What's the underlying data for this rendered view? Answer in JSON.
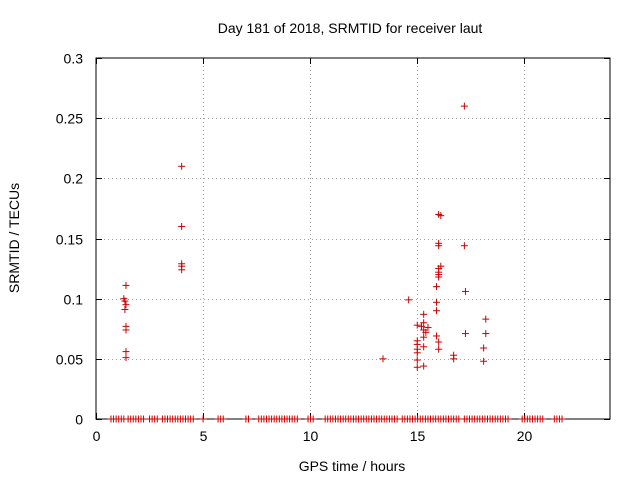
{
  "chart_data": {
    "type": "scatter",
    "title": "Day 181 of 2018, SRMTID for receiver laut",
    "xlabel": "GPS time / hours",
    "ylabel": "SRMTID / TECUs",
    "xlim": [
      0,
      24
    ],
    "ylim": [
      0,
      0.3
    ],
    "xticks": [
      0,
      5,
      10,
      15,
      20
    ],
    "xtick_labels": [
      "0",
      "5",
      "10",
      "15",
      "20"
    ],
    "yticks": [
      0,
      0.05,
      0.1,
      0.15,
      0.2,
      0.25,
      0.3
    ],
    "ytick_labels": [
      "0",
      "0.05",
      "0.1",
      "0.15",
      "0.2",
      "0.25",
      "0.3"
    ],
    "grid": true,
    "marker": "+",
    "color": "#cc0000",
    "series": [
      {
        "name": "SRMTID",
        "points": [
          [
            1.3,
            0.1
          ],
          [
            1.35,
            0.098
          ],
          [
            1.35,
            0.091
          ],
          [
            1.4,
            0.111
          ],
          [
            1.4,
            0.095
          ],
          [
            1.4,
            0.077
          ],
          [
            1.4,
            0.074
          ],
          [
            1.4,
            0.056
          ],
          [
            1.4,
            0.051
          ],
          [
            4.0,
            0.21
          ],
          [
            4.0,
            0.16
          ],
          [
            4.0,
            0.129
          ],
          [
            4.0,
            0.127
          ],
          [
            4.0,
            0.124
          ],
          [
            13.4,
            0.05
          ],
          [
            14.6,
            0.099
          ],
          [
            15.0,
            0.078
          ],
          [
            15.0,
            0.065
          ],
          [
            15.0,
            0.062
          ],
          [
            15.0,
            0.058
          ],
          [
            15.0,
            0.055
          ],
          [
            15.0,
            0.049
          ],
          [
            15.0,
            0.043
          ],
          [
            15.2,
            0.077
          ],
          [
            15.3,
            0.087
          ],
          [
            15.3,
            0.08
          ],
          [
            15.3,
            0.074
          ],
          [
            15.3,
            0.068
          ],
          [
            15.3,
            0.06
          ],
          [
            15.3,
            0.044
          ],
          [
            15.4,
            0.072
          ],
          [
            15.5,
            0.076
          ],
          [
            15.9,
            0.11
          ],
          [
            15.9,
            0.097
          ],
          [
            15.9,
            0.09
          ],
          [
            15.9,
            0.069
          ],
          [
            16.0,
            0.17
          ],
          [
            16.0,
            0.146
          ],
          [
            16.0,
            0.144
          ],
          [
            16.0,
            0.125
          ],
          [
            16.0,
            0.122
          ],
          [
            16.0,
            0.12
          ],
          [
            16.0,
            0.118
          ],
          [
            16.0,
            0.064
          ],
          [
            16.0,
            0.058
          ],
          [
            16.1,
            0.169
          ],
          [
            16.1,
            0.127
          ],
          [
            16.7,
            0.053
          ],
          [
            16.7,
            0.05
          ],
          [
            17.2,
            0.26
          ],
          [
            17.2,
            0.144
          ],
          [
            17.25,
            0.106
          ],
          [
            17.25,
            0.071
          ],
          [
            18.1,
            0.059
          ],
          [
            18.1,
            0.048
          ],
          [
            18.2,
            0.083
          ],
          [
            18.2,
            0.071
          ]
        ],
        "zero_ranges": [
          [
            0.7,
            1.3
          ],
          [
            1.5,
            2.3
          ],
          [
            2.5,
            2.9
          ],
          [
            3.1,
            4.6
          ],
          [
            5.0,
            5.1
          ],
          [
            5.7,
            6.0
          ],
          [
            7.0,
            7.2
          ],
          [
            7.6,
            9.4
          ],
          [
            9.9,
            10.2
          ],
          [
            10.7,
            14.1
          ],
          [
            14.3,
            17.0
          ],
          [
            17.2,
            19.3
          ],
          [
            19.9,
            20.9
          ],
          [
            21.4,
            21.8
          ]
        ],
        "zero_step": 0.12
      }
    ]
  }
}
